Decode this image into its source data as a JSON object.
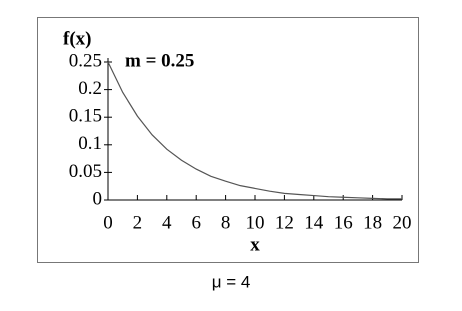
{
  "chart_data": {
    "type": "line",
    "ylabel": "f(x)",
    "xlabel": "x",
    "annotation": "m = 0.25",
    "caption": "μ = 4",
    "x": [
      0,
      1,
      2,
      3,
      4,
      5,
      6,
      7,
      8,
      9,
      10,
      11,
      12,
      13,
      14,
      15,
      16,
      17,
      18,
      19,
      20
    ],
    "series": [
      {
        "color": "#555555",
        "values": [
          0.25,
          0.195,
          0.152,
          0.118,
          0.092,
          0.072,
          0.056,
          0.043,
          0.034,
          0.026,
          0.021,
          0.016,
          0.012,
          0.01,
          0.008,
          0.006,
          0.005,
          0.004,
          0.003,
          0.002,
          0.002
        ]
      }
    ],
    "xlim": [
      0,
      20
    ],
    "xticks": [
      0,
      2,
      4,
      6,
      8,
      10,
      12,
      14,
      16,
      18,
      20
    ],
    "ylim": [
      0,
      0.25
    ],
    "yticks": [
      0,
      0.05,
      0.1,
      0.15,
      0.2,
      0.25
    ],
    "grid": false
  }
}
